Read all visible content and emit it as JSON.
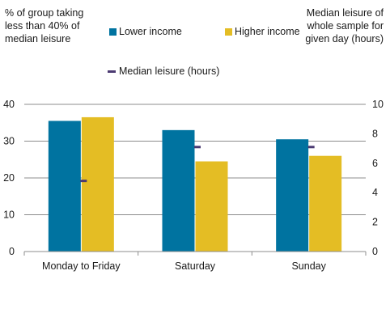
{
  "header": {
    "left_axis_title": "% of group taking less than 40% of median leisure",
    "right_axis_title": "Median leisure of whole sample for given day (hours)"
  },
  "legend": {
    "lower": "Lower income",
    "higher": "Higher income",
    "median": "Median leisure (hours)"
  },
  "colors": {
    "lower": "#0073a0",
    "higher": "#e4bd24",
    "median": "#4b3a72"
  },
  "chart_data": {
    "type": "bar",
    "categories": [
      "Monday to Friday",
      "Saturday",
      "Sunday"
    ],
    "series": [
      {
        "name": "Lower income",
        "axis": "left",
        "values": [
          35.5,
          33,
          30.5
        ]
      },
      {
        "name": "Higher income",
        "axis": "left",
        "values": [
          36.5,
          24.5,
          26
        ]
      },
      {
        "name": "Median leisure (hours)",
        "axis": "right",
        "type": "marker",
        "values": [
          4.8,
          7.1,
          7.1
        ]
      }
    ],
    "ylabel": "% of group taking less than 40% of median leisure",
    "ylim": [
      0,
      40
    ],
    "yticks": [
      0,
      10,
      20,
      30,
      40
    ],
    "y2label": "Median leisure of whole sample for given day (hours)",
    "y2lim": [
      0,
      10
    ],
    "y2ticks": [
      0,
      2,
      4,
      6,
      8,
      10
    ],
    "grid": true,
    "legend_position": "top"
  }
}
